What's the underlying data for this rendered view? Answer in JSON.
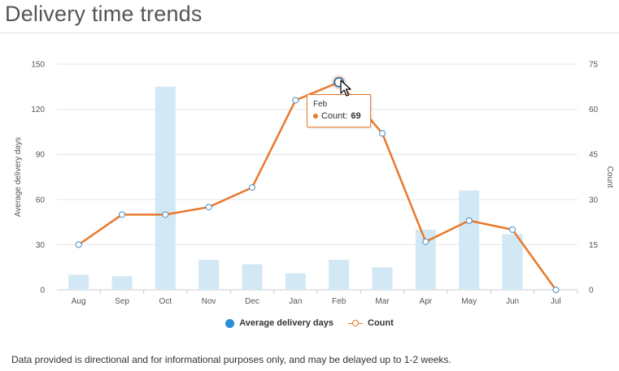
{
  "page": {
    "title": "Delivery time trends",
    "footnote": "Data provided is directional and for informational purposes only, and may be delayed up to 1-2 weeks."
  },
  "legend": {
    "items": [
      {
        "label": "Average delivery days",
        "icon": "filled-circle",
        "color": "#2b8fd6"
      },
      {
        "label": "Count",
        "icon": "line-circle",
        "color": "#e8792d"
      }
    ]
  },
  "tooltip": {
    "month": "Feb",
    "series_label": "Count:",
    "value": "69"
  },
  "chart_data": {
    "type": "bar",
    "categories": [
      "Aug",
      "Sep",
      "Oct",
      "Nov",
      "Dec",
      "Jan",
      "Feb",
      "Mar",
      "Apr",
      "May",
      "Jun",
      "Jul"
    ],
    "series": [
      {
        "name": "Average delivery days",
        "type": "bar",
        "axis": "left",
        "color": "#d3e8f5",
        "values": [
          10,
          9,
          135,
          20,
          17,
          11,
          20,
          15,
          40,
          66,
          37,
          0
        ]
      },
      {
        "name": "Count",
        "type": "line",
        "axis": "right",
        "color": "#e8792d",
        "values": [
          15,
          25,
          25,
          27.5,
          34,
          63,
          69,
          52,
          16,
          23,
          20,
          0
        ]
      }
    ],
    "title": "Delivery time trends",
    "ylabel": "Average delivery days",
    "ylabel_right": "Count",
    "ylim": [
      0,
      150
    ],
    "ylim_right": [
      0,
      75
    ],
    "yticks": [
      "0",
      "30",
      "60",
      "90",
      "120",
      "150"
    ],
    "yticks_right": [
      "0",
      "15",
      "30",
      "45",
      "60",
      "75"
    ],
    "grid": true,
    "legend": "bottom-center",
    "highlighted_category": "Feb"
  }
}
